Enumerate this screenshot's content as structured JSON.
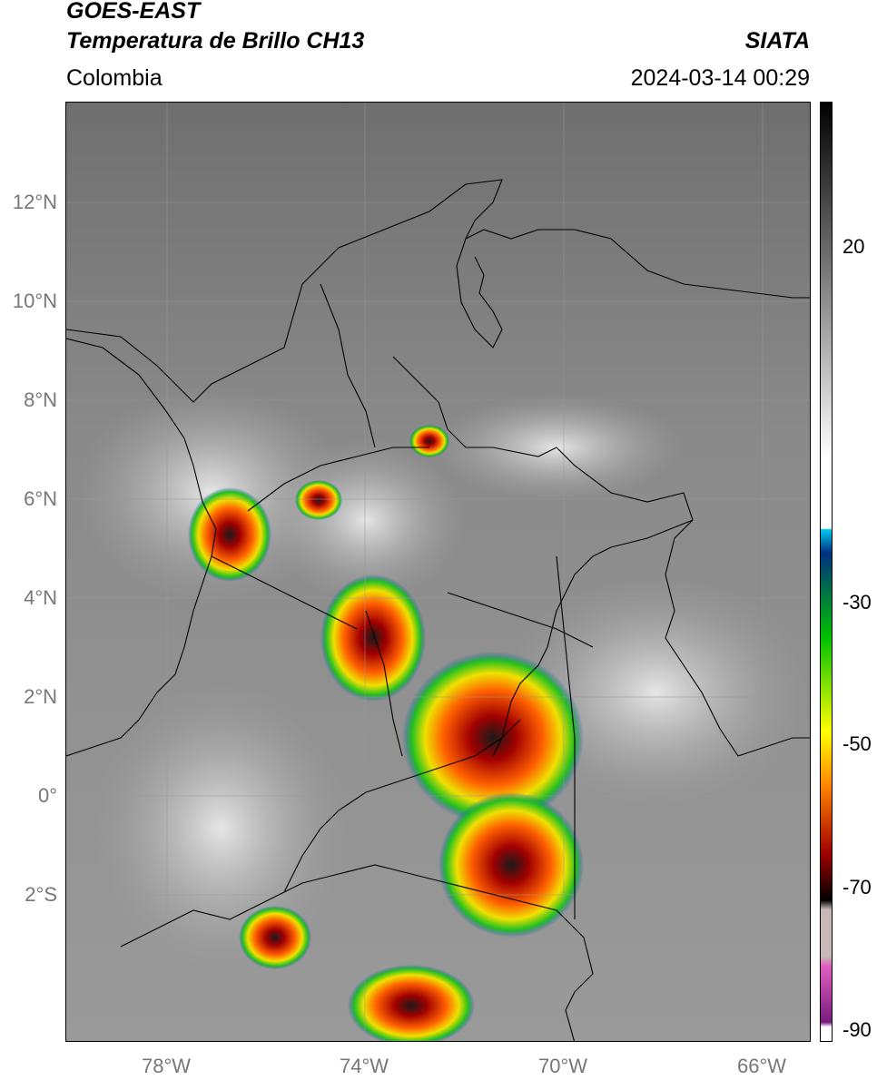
{
  "header": {
    "satellite": "GOES-EAST",
    "product": "Temperatura de Brillo CH13",
    "region": "Colombia",
    "source": "SIATA",
    "datetime": "2024-03-14 00:29"
  },
  "latitude_labels": [
    "12°N",
    "10°N",
    "8°N",
    "6°N",
    "4°N",
    "2°N",
    "0°",
    "2°S"
  ],
  "longitude_labels": [
    "78°W",
    "74°W",
    "70°W",
    "66°W"
  ],
  "colorbar": {
    "labels": [
      "20",
      "-30",
      "-50",
      "-70",
      "-90"
    ],
    "colors": [
      "#ffffff",
      "#7a1a80",
      "#e060c0",
      "#c8b8b8",
      "#000000",
      "#a00000",
      "#ff8000",
      "#ffff00",
      "#00c000",
      "#003080",
      "#00c8f0",
      "#ffffff",
      "#000000"
    ]
  },
  "map": {
    "icons": [
      "coastline-lines",
      "border-lines",
      "gridlines"
    ]
  }
}
